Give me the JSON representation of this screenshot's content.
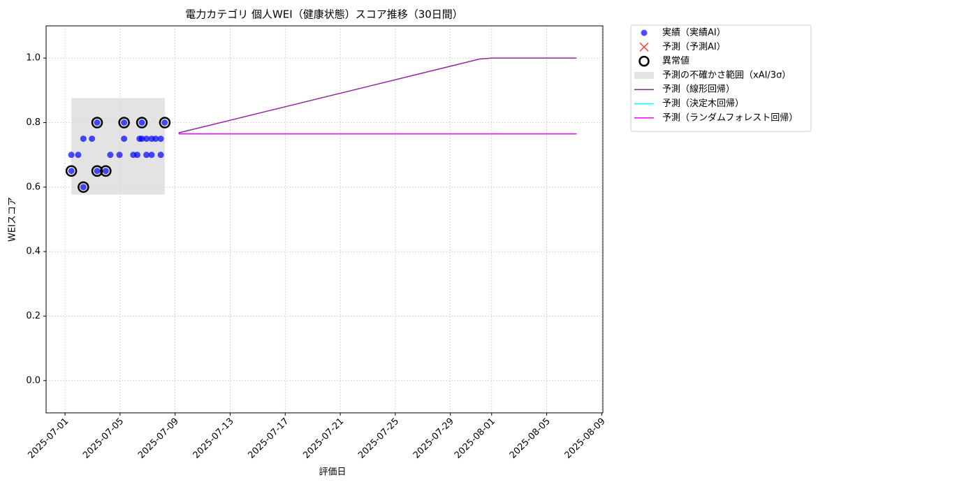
{
  "chart_data": {
    "type": "scatter",
    "title": "電力カテゴリ 個人WEI（健康状態）スコア推移（30日間）",
    "x_label": "評価日",
    "y_label": "WEIスコア",
    "xlim": [
      "2025-06-29T15:00",
      "2025-08-09T02:00"
    ],
    "ylim": [
      -0.1,
      1.1
    ],
    "xticks": [
      "2025-07-01",
      "2025-07-05",
      "2025-07-09",
      "2025-07-13",
      "2025-07-17",
      "2025-07-21",
      "2025-07-25",
      "2025-07-29",
      "2025-08-01",
      "2025-08-05",
      "2025-08-09"
    ],
    "yticks": [
      {
        "value": 0,
        "label": "0.0"
      },
      0.2,
      0.4,
      0.6,
      0.8,
      {
        "value": 1,
        "label": "1.0"
      }
    ],
    "grid": true,
    "legend": "outside-upper-right",
    "series": [
      {
        "name": "実績（実績AI）",
        "kind": "scatter",
        "color": "#0000ff",
        "x": [
          "2025-07-01T11:00",
          "2025-07-01T11:00",
          "2025-07-01T23:00",
          "2025-07-02T08:00",
          "2025-07-02T08:00",
          "2025-07-02T23:00",
          "2025-07-03T08:00",
          "2025-07-03T08:00",
          "2025-07-03T23:00",
          "2025-07-04T07:00",
          "2025-07-04T23:00",
          "2025-07-05T07:00",
          "2025-07-05T07:00",
          "2025-07-05T23:00",
          "2025-07-06T06:00",
          "2025-07-06T10:00",
          "2025-07-06T14:00",
          "2025-07-06T14:00",
          "2025-07-06T22:00",
          "2025-07-06T22:00",
          "2025-07-07T07:00",
          "2025-07-07T07:00",
          "2025-07-07T14:00",
          "2025-07-07T23:00",
          "2025-07-07T23:00",
          "2025-07-08T06:00"
        ],
        "values": [
          0.7,
          0.65,
          0.7,
          0.75,
          0.6,
          0.75,
          0.8,
          0.65,
          0.65,
          0.7,
          0.7,
          0.8,
          0.75,
          0.7,
          0.7,
          0.75,
          0.75,
          0.8,
          0.75,
          0.7,
          0.75,
          0.7,
          0.75,
          0.75,
          0.7,
          0.8
        ]
      },
      {
        "name": "予測（予測AI）",
        "kind": "cross",
        "color": "#ff0000",
        "x": [],
        "values": []
      },
      {
        "name": "異常値",
        "kind": "outlier",
        "color": "#000000",
        "x": [
          "2025-07-01T11:00",
          "2025-07-02T08:00",
          "2025-07-03T08:00",
          "2025-07-03T08:00",
          "2025-07-03T23:00",
          "2025-07-05T07:00",
          "2025-07-06T14:00",
          "2025-07-08T06:00"
        ],
        "values": [
          0.65,
          0.6,
          0.8,
          0.65,
          0.65,
          0.8,
          0.8,
          0.8
        ]
      },
      {
        "name": "予測の不確かさ範囲（xAI/3σ）",
        "kind": "band",
        "color": "#d9d9d9",
        "x": [
          "2025-07-01T11:00",
          "2025-07-08T06:00"
        ],
        "low": [
          0.577,
          0.577
        ],
        "high": [
          0.876,
          0.876
        ]
      },
      {
        "name": "予測（線形回帰）",
        "kind": "line",
        "color": "#8e2a9e",
        "x": [
          "2025-07-09T06:00",
          "2025-07-31T03:00",
          "2025-08-01T01:00",
          "2025-08-07T04:00"
        ],
        "values": [
          0.768,
          0.997,
          1,
          1
        ]
      },
      {
        "name": "予測（決定木回帰）",
        "kind": "line",
        "color": "#00ffff",
        "x": [
          "2025-07-09T06:00",
          "2025-08-07T04:00"
        ],
        "values": [
          0.765,
          0.765
        ]
      },
      {
        "name": "予測（ランダムフォレスト回帰）",
        "kind": "line",
        "color": "#ff00ff",
        "x": [
          "2025-07-09T06:00",
          "2025-08-07T04:00"
        ],
        "values": [
          0.765,
          0.765
        ]
      }
    ]
  }
}
